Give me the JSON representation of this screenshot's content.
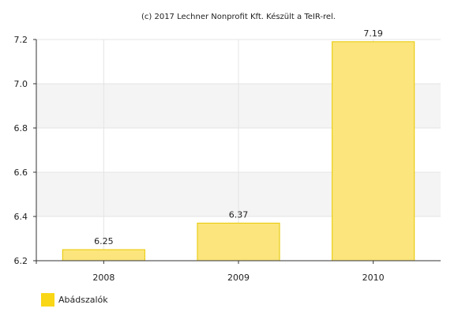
{
  "credit": "(c) 2017 Lechner Nonprofit Kft. Készült a TeIR-rel.",
  "colors": {
    "bar_fill": "#fbe57c",
    "bar_stroke": "#e8c800",
    "legend_swatch": "#f9d616",
    "band": "#f4f4f4",
    "gridline": "#e4e4e4",
    "axis": "#333333"
  },
  "chart_data": {
    "type": "bar",
    "categories": [
      "2008",
      "2009",
      "2010"
    ],
    "series": [
      {
        "name": "Abádszalók",
        "values": [
          6.25,
          6.37,
          7.19
        ],
        "labels": [
          "6.25",
          "6.37",
          "7.19"
        ]
      }
    ],
    "title": "",
    "xlabel": "",
    "ylabel": "",
    "ylim": [
      6.2,
      7.2
    ],
    "yticks": [
      "6.2",
      "6.4",
      "6.6",
      "6.8",
      "7.0",
      "7.2"
    ],
    "grid": true,
    "legend": "bottom-left"
  }
}
